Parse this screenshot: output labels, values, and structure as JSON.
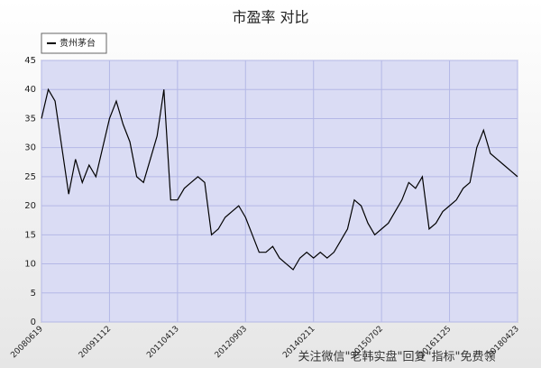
{
  "chart_data": {
    "type": "line",
    "title": "市盈率 对比",
    "categories": [
      "20080619",
      null,
      null,
      null,
      null,
      null,
      null,
      null,
      null,
      null,
      "20091112",
      null,
      null,
      null,
      null,
      null,
      null,
      null,
      null,
      null,
      "20110413",
      null,
      null,
      null,
      null,
      null,
      null,
      null,
      null,
      null,
      "20120903",
      null,
      null,
      null,
      null,
      null,
      null,
      null,
      null,
      null,
      "20140211",
      null,
      null,
      null,
      null,
      null,
      null,
      null,
      null,
      null,
      "20150702",
      null,
      null,
      null,
      null,
      null,
      null,
      null,
      null,
      null,
      "20161125",
      null,
      null,
      null,
      null,
      null,
      null,
      null,
      null,
      null,
      "20180423"
    ],
    "series": [
      {
        "name": "贵州茅台",
        "color": "#000000",
        "values": [
          35,
          40,
          38,
          30,
          22,
          28,
          24,
          27,
          25,
          30,
          35,
          38,
          34,
          31,
          25,
          24,
          28,
          32,
          40,
          21,
          21,
          23,
          24,
          25,
          24,
          15,
          16,
          18,
          19,
          20,
          18,
          15,
          12,
          12,
          13,
          11,
          10,
          9,
          11,
          12,
          11,
          12,
          11,
          12,
          14,
          16,
          21,
          20,
          17,
          15,
          16,
          17,
          19,
          21,
          24,
          23,
          25,
          16,
          17,
          19,
          20,
          21,
          23,
          24,
          30,
          33,
          29,
          28,
          27,
          26,
          25
        ]
      }
    ],
    "ylim": [
      0,
      45
    ],
    "yticks": [
      0,
      5,
      10,
      15,
      20,
      25,
      30,
      35,
      40,
      45
    ],
    "grid": true,
    "legend": "top-left",
    "annotation": "关注微信\"老韩实盘\"回复\"指标\"免费领"
  }
}
